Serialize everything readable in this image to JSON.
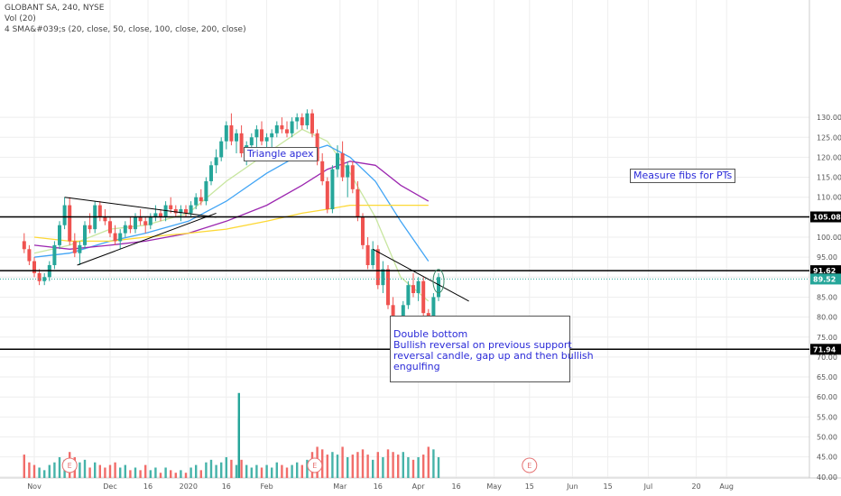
{
  "header": {
    "symbol_line": "GLOBANT SA, 240, NYSE",
    "vol_line": "Vol (20)",
    "sma_line": "4 SMA&#039;s (20, close, 50, close, 100, close, 200, close)"
  },
  "annotations": {
    "triangle": "Triangle apex",
    "fibs": "Measure fibs for PTs",
    "double_bottom_1": "Double bottom",
    "double_bottom_2": "Bullish reversal on previous support",
    "double_bottom_3": "reversal candle, gap up and then bullish",
    "double_bottom_4": "engulfing"
  },
  "earnings_marker": "E",
  "colors": {
    "up": "#26a69a",
    "down": "#ef5350",
    "sma20": "#c8e6a0",
    "sma50": "#42a5f5",
    "sma100": "#9c27b0",
    "sma200": "#fdd835",
    "annotation": "#2a2ad8"
  },
  "chart_data": {
    "type": "candlestick",
    "title": "GLOBANT SA, 240, NYSE",
    "y_axis": {
      "min": 40,
      "max": 130,
      "step": 5,
      "position": "right"
    },
    "x_ticks": [
      "Nov",
      "Dec",
      "16",
      "2020",
      "16",
      "Feb",
      "Mar",
      "16",
      "Apr",
      "16",
      "May",
      "15",
      "Jun",
      "15",
      "Jul",
      "20",
      "Aug"
    ],
    "x_tick_dates": [
      "2019-11-01",
      "2019-12-01",
      "2019-12-16",
      "2020-01-01",
      "2020-01-16",
      "2020-02-01",
      "2020-03-01",
      "2020-03-16",
      "2020-04-01",
      "2020-04-16",
      "2020-05-01",
      "2020-05-15",
      "2020-06-01",
      "2020-06-15",
      "2020-07-01",
      "2020-07-20",
      "2020-08-01"
    ],
    "horizontal_levels": [
      {
        "label": "105.08",
        "value": 105.08,
        "style": "black"
      },
      {
        "label": "91.62",
        "value": 91.62,
        "style": "black"
      },
      {
        "label": "89.52",
        "value": 89.52,
        "style": "green-dotted"
      },
      {
        "label": "71.94",
        "value": 71.94,
        "style": "black"
      }
    ],
    "trendlines": [
      {
        "name": "triangle upper",
        "from": [
          "2019-11-13",
          110
        ],
        "to": [
          "2020-01-12",
          105
        ]
      },
      {
        "name": "triangle lower",
        "from": [
          "2019-11-18",
          93
        ],
        "to": [
          "2020-01-12",
          106
        ]
      },
      {
        "name": "descending resistance",
        "from": [
          "2020-03-14",
          97
        ],
        "to": [
          "2020-04-21",
          84
        ]
      }
    ],
    "earnings_dates": [
      "2019-11-15",
      "2020-02-20",
      "2020-05-15"
    ],
    "volume_spike": {
      "date": "2020-01-21",
      "value": 61
    },
    "ohlc": [
      [
        "2019-10-28",
        99,
        101,
        96,
        97
      ],
      [
        "2019-10-30",
        97,
        98,
        93,
        94
      ],
      [
        "2019-11-01",
        94,
        95,
        90,
        91
      ],
      [
        "2019-11-03",
        91,
        92,
        88,
        89
      ],
      [
        "2019-11-05",
        89,
        91,
        88,
        90
      ],
      [
        "2019-11-07",
        90,
        94,
        89,
        93
      ],
      [
        "2019-11-09",
        93,
        99,
        92,
        98
      ],
      [
        "2019-11-11",
        98,
        104,
        97,
        103
      ],
      [
        "2019-11-13",
        103,
        110,
        102,
        108
      ],
      [
        "2019-11-15",
        108,
        110,
        98,
        99
      ],
      [
        "2019-11-17",
        99,
        101,
        95,
        96
      ],
      [
        "2019-11-19",
        96,
        99,
        93,
        98
      ],
      [
        "2019-11-21",
        98,
        104,
        97,
        103
      ],
      [
        "2019-11-23",
        103,
        106,
        101,
        102
      ],
      [
        "2019-11-25",
        102,
        109,
        101,
        108
      ],
      [
        "2019-11-27",
        108,
        109,
        104,
        105
      ],
      [
        "2019-11-29",
        105,
        107,
        103,
        104
      ],
      [
        "2019-12-01",
        104,
        105,
        100,
        101
      ],
      [
        "2019-12-03",
        101,
        103,
        98,
        99
      ],
      [
        "2019-12-05",
        99,
        102,
        97,
        101
      ],
      [
        "2019-12-07",
        101,
        104,
        100,
        103
      ],
      [
        "2019-12-09",
        103,
        105,
        101,
        102
      ],
      [
        "2019-12-11",
        102,
        106,
        101,
        105
      ],
      [
        "2019-12-13",
        105,
        107,
        103,
        104
      ],
      [
        "2019-12-15",
        104,
        105,
        101,
        103
      ],
      [
        "2019-12-17",
        103,
        106,
        102,
        105
      ],
      [
        "2019-12-19",
        105,
        108,
        104,
        106
      ],
      [
        "2019-12-21",
        106,
        107,
        104,
        105
      ],
      [
        "2019-12-23",
        105,
        109,
        104,
        108
      ],
      [
        "2019-12-25",
        108,
        110,
        106,
        107
      ],
      [
        "2019-12-27",
        107,
        108,
        105,
        106
      ],
      [
        "2019-12-29",
        106,
        108,
        104,
        107
      ],
      [
        "2019-12-31",
        107,
        108,
        105,
        106
      ],
      [
        "2020-01-02",
        106,
        109,
        105,
        108
      ],
      [
        "2020-01-04",
        108,
        111,
        107,
        110
      ],
      [
        "2020-01-06",
        110,
        112,
        108,
        109
      ],
      [
        "2020-01-08",
        109,
        115,
        108,
        114
      ],
      [
        "2020-01-10",
        114,
        119,
        113,
        118
      ],
      [
        "2020-01-12",
        118,
        122,
        116,
        120
      ],
      [
        "2020-01-14",
        120,
        125,
        119,
        124
      ],
      [
        "2020-01-16",
        124,
        129,
        122,
        128
      ],
      [
        "2020-01-18",
        128,
        131,
        123,
        124
      ],
      [
        "2020-01-20",
        124,
        127,
        121,
        126
      ],
      [
        "2020-01-22",
        126,
        128,
        120,
        121
      ],
      [
        "2020-01-24",
        121,
        124,
        118,
        123
      ],
      [
        "2020-01-26",
        123,
        126,
        121,
        125
      ],
      [
        "2020-01-28",
        125,
        128,
        122,
        127
      ],
      [
        "2020-01-30",
        127,
        129,
        123,
        124
      ],
      [
        "2020-02-01",
        124,
        126,
        121,
        125
      ],
      [
        "2020-02-03",
        125,
        127,
        122,
        126
      ],
      [
        "2020-02-05",
        126,
        129,
        125,
        128
      ],
      [
        "2020-02-07",
        128,
        130,
        126,
        127
      ],
      [
        "2020-02-09",
        127,
        129,
        125,
        126
      ],
      [
        "2020-02-11",
        126,
        130,
        125,
        129
      ],
      [
        "2020-02-13",
        129,
        131,
        127,
        130
      ],
      [
        "2020-02-15",
        130,
        131,
        127,
        128
      ],
      [
        "2020-02-17",
        128,
        132,
        127,
        131
      ],
      [
        "2020-02-19",
        131,
        132,
        125,
        126
      ],
      [
        "2020-02-21",
        126,
        127,
        118,
        119
      ],
      [
        "2020-02-23",
        119,
        121,
        113,
        114
      ],
      [
        "2020-02-25",
        114,
        115,
        106,
        107
      ],
      [
        "2020-02-27",
        107,
        118,
        106,
        117
      ],
      [
        "2020-02-29",
        117,
        123,
        115,
        121
      ],
      [
        "2020-03-02",
        121,
        124,
        114,
        115
      ],
      [
        "2020-03-04",
        115,
        119,
        110,
        118
      ],
      [
        "2020-03-06",
        118,
        119,
        111,
        112
      ],
      [
        "2020-03-08",
        112,
        114,
        104,
        105
      ],
      [
        "2020-03-10",
        105,
        106,
        97,
        98
      ],
      [
        "2020-03-12",
        98,
        100,
        92,
        93
      ],
      [
        "2020-03-14",
        93,
        99,
        92,
        97
      ],
      [
        "2020-03-16",
        97,
        98,
        87,
        88
      ],
      [
        "2020-03-18",
        88,
        94,
        86,
        92
      ],
      [
        "2020-03-20",
        92,
        93,
        82,
        83
      ],
      [
        "2020-03-22",
        83,
        85,
        76,
        77
      ],
      [
        "2020-03-24",
        77,
        80,
        72,
        73
      ],
      [
        "2020-03-26",
        73,
        84,
        72,
        83
      ],
      [
        "2020-03-28",
        83,
        89,
        82,
        88
      ],
      [
        "2020-03-30",
        88,
        91,
        85,
        86
      ],
      [
        "2020-04-01",
        86,
        90,
        84,
        89
      ],
      [
        "2020-04-03",
        89,
        90,
        80,
        81
      ],
      [
        "2020-04-05",
        81,
        82,
        73,
        74
      ],
      [
        "2020-04-07",
        74,
        86,
        73,
        85
      ],
      [
        "2020-04-09",
        85,
        91,
        84,
        90
      ]
    ],
    "volume": [
      [
        "2019-10-28",
        47,
        "down"
      ],
      [
        "2019-10-30",
        44,
        "down"
      ],
      [
        "2019-11-01",
        43,
        "down"
      ],
      [
        "2019-11-03",
        42,
        "up"
      ],
      [
        "2019-11-05",
        41,
        "up"
      ],
      [
        "2019-11-07",
        43,
        "up"
      ],
      [
        "2019-11-09",
        44,
        "up"
      ],
      [
        "2019-11-11",
        46,
        "up"
      ],
      [
        "2019-11-13",
        45,
        "up"
      ],
      [
        "2019-11-15",
        48,
        "down"
      ],
      [
        "2019-11-17",
        46,
        "down"
      ],
      [
        "2019-11-19",
        44,
        "up"
      ],
      [
        "2019-11-21",
        45,
        "up"
      ],
      [
        "2019-11-23",
        42,
        "down"
      ],
      [
        "2019-11-25",
        44,
        "up"
      ],
      [
        "2019-11-27",
        43,
        "down"
      ],
      [
        "2019-11-29",
        42,
        "down"
      ],
      [
        "2019-12-01",
        43,
        "down"
      ],
      [
        "2019-12-03",
        44,
        "down"
      ],
      [
        "2019-12-05",
        42,
        "up"
      ],
      [
        "2019-12-07",
        43,
        "up"
      ],
      [
        "2019-12-09",
        41,
        "down"
      ],
      [
        "2019-12-11",
        42,
        "up"
      ],
      [
        "2019-12-13",
        41,
        "down"
      ],
      [
        "2019-12-15",
        43,
        "down"
      ],
      [
        "2019-12-17",
        41,
        "up"
      ],
      [
        "2019-12-19",
        42,
        "up"
      ],
      [
        "2019-12-21",
        40,
        "down"
      ],
      [
        "2019-12-23",
        42,
        "up"
      ],
      [
        "2019-12-25",
        41,
        "down"
      ],
      [
        "2019-12-27",
        40,
        "down"
      ],
      [
        "2019-12-29",
        41,
        "up"
      ],
      [
        "2019-12-31",
        40,
        "down"
      ],
      [
        "2020-01-02",
        42,
        "up"
      ],
      [
        "2020-01-04",
        43,
        "up"
      ],
      [
        "2020-01-06",
        41,
        "down"
      ],
      [
        "2020-01-08",
        44,
        "up"
      ],
      [
        "2020-01-10",
        45,
        "up"
      ],
      [
        "2020-01-12",
        43,
        "up"
      ],
      [
        "2020-01-14",
        44,
        "up"
      ],
      [
        "2020-01-16",
        46,
        "up"
      ],
      [
        "2020-01-18",
        45,
        "down"
      ],
      [
        "2020-01-20",
        43,
        "up"
      ],
      [
        "2020-01-21",
        61,
        "up"
      ],
      [
        "2020-01-22",
        45,
        "down"
      ],
      [
        "2020-01-24",
        43,
        "up"
      ],
      [
        "2020-01-26",
        42,
        "up"
      ],
      [
        "2020-01-28",
        43,
        "up"
      ],
      [
        "2020-01-30",
        42,
        "down"
      ],
      [
        "2020-02-01",
        43,
        "up"
      ],
      [
        "2020-02-03",
        42,
        "up"
      ],
      [
        "2020-02-05",
        44,
        "up"
      ],
      [
        "2020-02-07",
        43,
        "down"
      ],
      [
        "2020-02-09",
        42,
        "down"
      ],
      [
        "2020-02-11",
        43,
        "up"
      ],
      [
        "2020-02-13",
        44,
        "up"
      ],
      [
        "2020-02-15",
        43,
        "down"
      ],
      [
        "2020-02-17",
        45,
        "up"
      ],
      [
        "2020-02-19",
        48,
        "down"
      ],
      [
        "2020-02-21",
        50,
        "down"
      ],
      [
        "2020-02-23",
        49,
        "down"
      ],
      [
        "2020-02-25",
        47,
        "down"
      ],
      [
        "2020-02-27",
        48,
        "up"
      ],
      [
        "2020-02-29",
        47,
        "up"
      ],
      [
        "2020-03-02",
        50,
        "down"
      ],
      [
        "2020-03-04",
        46,
        "up"
      ],
      [
        "2020-03-06",
        47,
        "down"
      ],
      [
        "2020-03-08",
        48,
        "down"
      ],
      [
        "2020-03-10",
        49,
        "down"
      ],
      [
        "2020-03-12",
        47,
        "down"
      ],
      [
        "2020-03-14",
        45,
        "up"
      ],
      [
        "2020-03-16",
        48,
        "down"
      ],
      [
        "2020-03-18",
        46,
        "up"
      ],
      [
        "2020-03-20",
        49,
        "down"
      ],
      [
        "2020-03-22",
        48,
        "down"
      ],
      [
        "2020-03-24",
        47,
        "down"
      ],
      [
        "2020-03-26",
        48,
        "up"
      ],
      [
        "2020-03-28",
        46,
        "up"
      ],
      [
        "2020-03-30",
        45,
        "down"
      ],
      [
        "2020-04-01",
        46,
        "up"
      ],
      [
        "2020-04-03",
        47,
        "down"
      ],
      [
        "2020-04-05",
        50,
        "down"
      ],
      [
        "2020-04-07",
        49,
        "up"
      ],
      [
        "2020-04-09",
        46,
        "up"
      ]
    ],
    "sma": [
      {
        "name": "SMA 20",
        "period": 20,
        "color": "#c8e6a0"
      },
      {
        "name": "SMA 50",
        "period": 50,
        "color": "#42a5f5"
      },
      {
        "name": "SMA 100",
        "period": 100,
        "color": "#9c27b0"
      },
      {
        "name": "SMA 200",
        "period": 200,
        "color": "#fdd835"
      }
    ],
    "sma_paths": {
      "SMA 20": [
        [
          "2019-11-01",
          96
        ],
        [
          "2019-11-15",
          98
        ],
        [
          "2019-12-01",
          102
        ],
        [
          "2019-12-15",
          103
        ],
        [
          "2020-01-01",
          106
        ],
        [
          "2020-01-16",
          114
        ],
        [
          "2020-02-01",
          121
        ],
        [
          "2020-02-15",
          127
        ],
        [
          "2020-02-25",
          124
        ],
        [
          "2020-03-05",
          116
        ],
        [
          "2020-03-15",
          105
        ],
        [
          "2020-03-25",
          90
        ],
        [
          "2020-04-05",
          84
        ]
      ],
      "SMA 50": [
        [
          "2019-11-01",
          95
        ],
        [
          "2019-11-15",
          96
        ],
        [
          "2019-12-01",
          99
        ],
        [
          "2019-12-15",
          101
        ],
        [
          "2020-01-01",
          104
        ],
        [
          "2020-01-16",
          109
        ],
        [
          "2020-02-01",
          116
        ],
        [
          "2020-02-15",
          121
        ],
        [
          "2020-02-25",
          123
        ],
        [
          "2020-03-05",
          120
        ],
        [
          "2020-03-15",
          114
        ],
        [
          "2020-03-25",
          104
        ],
        [
          "2020-04-05",
          94
        ]
      ],
      "SMA 100": [
        [
          "2019-11-01",
          98
        ],
        [
          "2019-11-15",
          97
        ],
        [
          "2019-12-01",
          98
        ],
        [
          "2019-12-15",
          99
        ],
        [
          "2020-01-01",
          101
        ],
        [
          "2020-01-16",
          104
        ],
        [
          "2020-02-01",
          108
        ],
        [
          "2020-02-15",
          113
        ],
        [
          "2020-02-25",
          117
        ],
        [
          "2020-03-05",
          119
        ],
        [
          "2020-03-15",
          118
        ],
        [
          "2020-03-25",
          113
        ],
        [
          "2020-04-05",
          109
        ]
      ],
      "SMA 200": [
        [
          "2019-11-01",
          100
        ],
        [
          "2019-11-15",
          99
        ],
        [
          "2019-12-01",
          99
        ],
        [
          "2019-12-15",
          100
        ],
        [
          "2020-01-01",
          101
        ],
        [
          "2020-01-16",
          102
        ],
        [
          "2020-02-01",
          104
        ],
        [
          "2020-02-15",
          106
        ],
        [
          "2020-02-25",
          107
        ],
        [
          "2020-03-05",
          108
        ],
        [
          "2020-03-15",
          108
        ],
        [
          "2020-03-25",
          108
        ],
        [
          "2020-04-05",
          108
        ]
      ]
    },
    "highlight_circles": [
      [
        "2020-03-24",
        73
      ],
      [
        "2020-04-05",
        74
      ],
      [
        "2020-04-09",
        89
      ]
    ]
  }
}
